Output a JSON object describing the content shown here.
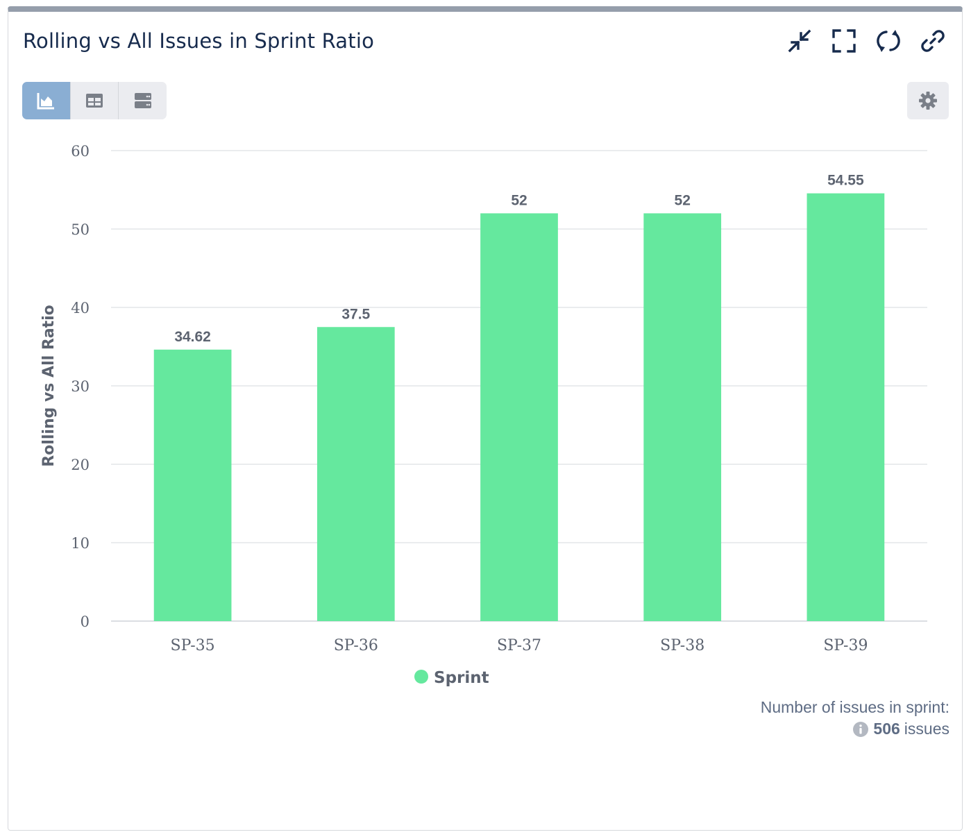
{
  "header": {
    "title": "Rolling vs All Issues in Sprint Ratio"
  },
  "icons": {
    "collapse": "collapse-arrows-icon",
    "fullscreen": "fullscreen-icon",
    "refresh": "refresh-icon",
    "link": "link-icon",
    "settings": "gear-icon"
  },
  "view_toggle": {
    "options": [
      "chart-view",
      "table-view",
      "list-view"
    ],
    "active": "chart-view"
  },
  "colors": {
    "bar": "#65e89e",
    "title": "#172b4d",
    "active_toggle": "#8aaed3"
  },
  "chart_data": {
    "type": "bar",
    "categories": [
      "SP-35",
      "SP-36",
      "SP-37",
      "SP-38",
      "SP-39"
    ],
    "series": [
      {
        "name": "Sprint",
        "values": [
          34.62,
          37.5,
          52,
          52,
          54.55
        ],
        "color": "#65e89e"
      }
    ],
    "value_labels": [
      "34.62",
      "37.5",
      "52",
      "52",
      "54.55"
    ],
    "ylabel": "Rolling vs All Ratio",
    "xlabel": "",
    "ylim": [
      0,
      60
    ],
    "yticks": [
      0,
      10,
      20,
      30,
      40,
      50,
      60
    ],
    "grid": true,
    "legend": "bottom-center"
  },
  "footer": {
    "label": "Number of issues in sprint:",
    "count": "506",
    "unit": "issues"
  }
}
